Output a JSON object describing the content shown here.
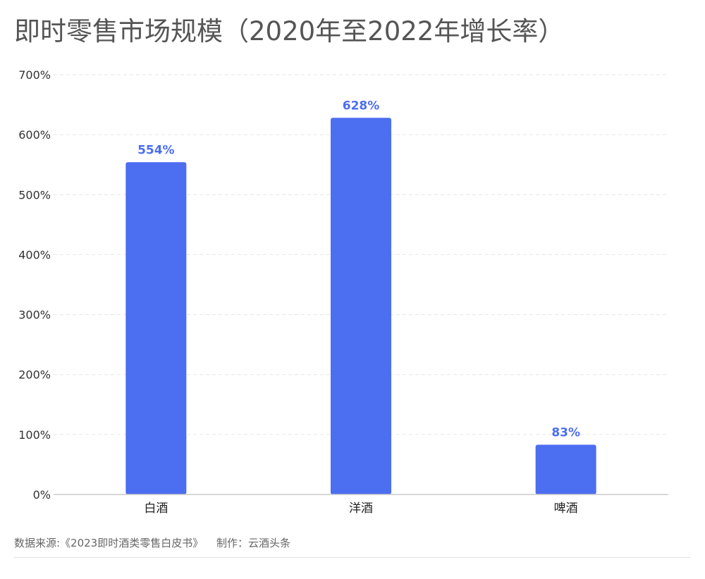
{
  "chart_data": {
    "type": "bar",
    "title": "即时零售市场规模（2020年至2022年增长率）",
    "categories": [
      "白酒",
      "洋酒",
      "啤酒"
    ],
    "values": [
      554,
      628,
      83
    ],
    "data_labels": [
      "554%",
      "628%",
      "83%"
    ],
    "ylim": [
      0,
      700
    ],
    "yticks": [
      0,
      100,
      200,
      300,
      400,
      500,
      600,
      700
    ],
    "ytick_labels": [
      "0%",
      "100%",
      "200%",
      "300%",
      "400%",
      "500%",
      "600%",
      "700%"
    ],
    "grid": true,
    "legend": "none",
    "bar_color": "#4c6ef0",
    "label_color": "#4c6ef0"
  },
  "footer": {
    "source": "数据来源:《2023即时酒类零售白皮书》",
    "credit": "制作：云酒头条"
  }
}
